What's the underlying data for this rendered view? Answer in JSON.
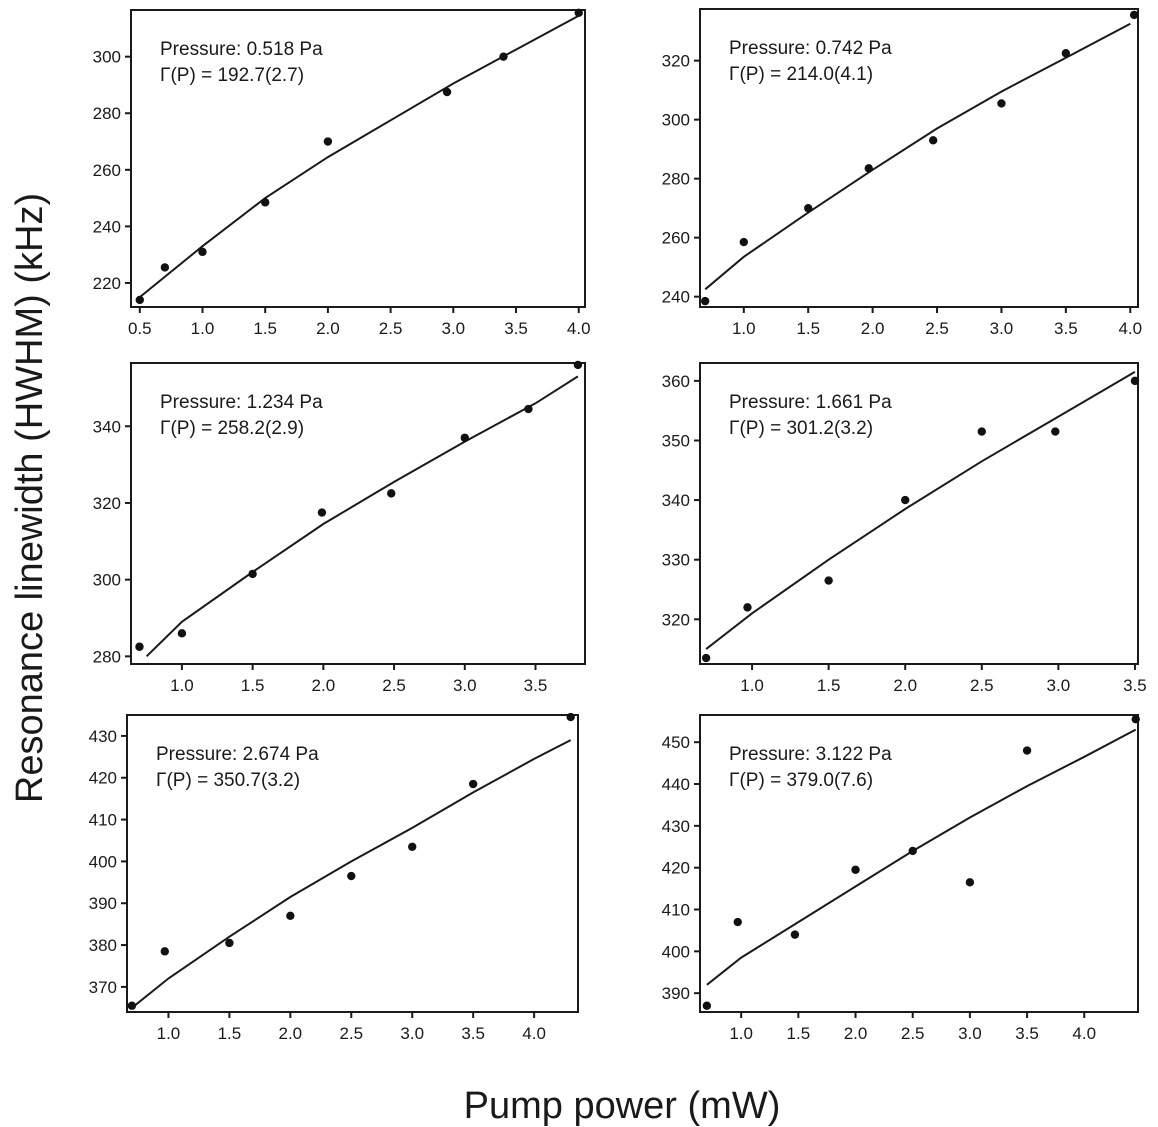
{
  "figure": {
    "ylabel": "Resonance linewidth (HWHM) (kHz)",
    "xlabel": "Pump power (mW)"
  },
  "chart_data": [
    {
      "type": "scatter",
      "annotation": [
        "Pressure: 0.518 Pa",
        "Γ(P) = 192.7(2.7)"
      ],
      "xticks": [
        "0.5",
        "1.0",
        "1.5",
        "2.0",
        "2.5",
        "3.0",
        "3.5",
        "4.0"
      ],
      "yticks": [
        "220",
        "240",
        "260",
        "280",
        "300"
      ],
      "xlim": [
        0.43,
        4.05
      ],
      "ylim": [
        211.5,
        316.5
      ],
      "series": [
        {
          "type": "scatter",
          "x": [
            0.5,
            0.7,
            1.0,
            1.5,
            2.0,
            2.95,
            3.4,
            4.0
          ],
          "y": [
            214.0,
            225.5,
            231.0,
            248.5,
            270.0,
            287.5,
            300.0,
            315.5
          ]
        },
        {
          "type": "line",
          "x": [
            0.5,
            1.0,
            1.5,
            2.0,
            2.5,
            3.0,
            3.5,
            4.0
          ],
          "y": [
            215.0,
            233.0,
            250.0,
            264.5,
            277.5,
            290.5,
            302.5,
            314.5
          ]
        }
      ]
    },
    {
      "type": "scatter",
      "annotation": [
        "Pressure: 0.742 Pa",
        "Γ(P) = 214.0(4.1)"
      ],
      "xticks": [
        "1.0",
        "1.5",
        "2.0",
        "2.5",
        "3.0",
        "3.5",
        "4.0"
      ],
      "yticks": [
        "240",
        "260",
        "280",
        "300",
        "320"
      ],
      "xlim": [
        0.66,
        4.06
      ],
      "ylim": [
        236.5,
        337.5
      ],
      "series": [
        {
          "type": "scatter",
          "x": [
            0.7,
            1.0,
            1.5,
            1.97,
            2.47,
            3.0,
            3.5,
            4.03
          ],
          "y": [
            238.5,
            258.5,
            270.0,
            283.5,
            293.0,
            305.5,
            322.5,
            335.5
          ]
        },
        {
          "type": "line",
          "x": [
            0.7,
            1.0,
            1.5,
            2.0,
            2.5,
            3.0,
            3.5,
            4.0
          ],
          "y": [
            242.5,
            253.5,
            268.5,
            283.0,
            297.0,
            309.5,
            321.0,
            332.5
          ]
        }
      ]
    },
    {
      "type": "scatter",
      "annotation": [
        "Pressure: 1.234 Pa",
        "Γ(P) = 258.2(2.9)"
      ],
      "xticks": [
        "1.0",
        "1.5",
        "2.0",
        "2.5",
        "3.0",
        "3.5"
      ],
      "yticks": [
        "280",
        "300",
        "320",
        "340"
      ],
      "xlim": [
        0.64,
        3.85
      ],
      "ylim": [
        278.0,
        356.5
      ],
      "series": [
        {
          "type": "scatter",
          "x": [
            0.7,
            1.0,
            1.5,
            1.99,
            2.48,
            3.0,
            3.45,
            3.8
          ],
          "y": [
            282.5,
            286.0,
            301.5,
            317.5,
            322.5,
            337.0,
            344.5,
            356.0
          ]
        },
        {
          "type": "line",
          "x": [
            0.75,
            1.0,
            1.5,
            2.0,
            2.5,
            3.0,
            3.5,
            3.8
          ],
          "y": [
            280.0,
            289.0,
            302.0,
            314.5,
            325.5,
            336.0,
            346.0,
            353.0
          ]
        }
      ]
    },
    {
      "type": "scatter",
      "annotation": [
        "Pressure: 1.661 Pa",
        "Γ(P) = 301.2(3.2)"
      ],
      "xticks": [
        "1.0",
        "1.5",
        "2.0",
        "2.5",
        "3.0",
        "3.5"
      ],
      "yticks": [
        "320",
        "330",
        "340",
        "350",
        "360"
      ],
      "xlim": [
        0.66,
        3.52
      ],
      "ylim": [
        312.5,
        363.0
      ],
      "series": [
        {
          "type": "scatter",
          "x": [
            0.7,
            0.97,
            1.5,
            2.0,
            2.5,
            2.98,
            3.5
          ],
          "y": [
            313.5,
            322.0,
            326.5,
            340.0,
            351.5,
            351.5,
            360.0
          ]
        },
        {
          "type": "line",
          "x": [
            0.7,
            1.0,
            1.5,
            2.0,
            2.5,
            3.0,
            3.5
          ],
          "y": [
            315.0,
            321.0,
            330.0,
            338.5,
            346.5,
            354.0,
            361.5
          ]
        }
      ]
    },
    {
      "type": "scatter",
      "annotation": [
        "Pressure: 2.674 Pa",
        "Γ(P) = 350.7(3.2)"
      ],
      "xticks": [
        "1.0",
        "1.5",
        "2.0",
        "2.5",
        "3.0",
        "3.5",
        "4.0"
      ],
      "yticks": [
        "370",
        "380",
        "390",
        "400",
        "410",
        "420",
        "430"
      ],
      "xlim": [
        0.66,
        4.36
      ],
      "ylim": [
        364.0,
        435.0
      ],
      "series": [
        {
          "type": "scatter",
          "x": [
            0.7,
            0.97,
            1.5,
            2.0,
            2.5,
            3.0,
            3.5,
            4.3
          ],
          "y": [
            365.5,
            378.5,
            380.5,
            387.0,
            396.5,
            403.5,
            418.5,
            434.5
          ]
        },
        {
          "type": "line",
          "x": [
            0.7,
            1.0,
            1.5,
            2.0,
            2.5,
            3.0,
            3.5,
            4.0,
            4.3
          ],
          "y": [
            365.0,
            372.0,
            382.0,
            391.5,
            400.0,
            408.0,
            416.5,
            424.5,
            429.0
          ]
        }
      ]
    },
    {
      "type": "scatter",
      "annotation": [
        "Pressure: 3.122 Pa",
        "Γ(P) = 379.0(7.6)"
      ],
      "xticks": [
        "1.0",
        "1.5",
        "2.0",
        "2.5",
        "3.0",
        "3.5",
        "4.0"
      ],
      "yticks": [
        "390",
        "400",
        "410",
        "420",
        "430",
        "440",
        "450"
      ],
      "xlim": [
        0.64,
        4.47
      ],
      "ylim": [
        385.5,
        456.5
      ],
      "series": [
        {
          "type": "scatter",
          "x": [
            0.7,
            0.97,
            1.47,
            2.0,
            2.5,
            3.0,
            3.5,
            4.45
          ],
          "y": [
            387.0,
            407.0,
            404.0,
            419.5,
            424.0,
            416.5,
            448.0,
            455.5
          ]
        },
        {
          "type": "line",
          "x": [
            0.7,
            1.0,
            1.5,
            2.0,
            2.5,
            3.0,
            3.5,
            4.0,
            4.45
          ],
          "y": [
            392.0,
            398.5,
            407.0,
            415.5,
            424.0,
            432.0,
            439.5,
            446.5,
            453.0
          ]
        }
      ]
    }
  ]
}
